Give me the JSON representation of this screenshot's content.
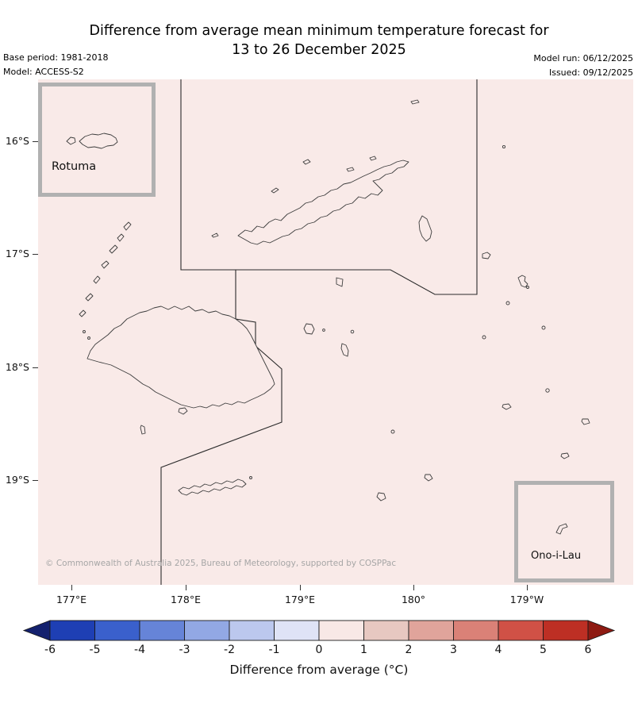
{
  "title": {
    "line1": "Difference from average mean minimum temperature forecast for",
    "line2": "13 to 26 December 2025"
  },
  "meta": {
    "base_period": "Base period: 1981-2018",
    "model": "Model: ACCESS-S2",
    "model_run": "Model run: 06/12/2025",
    "issued": "Issued: 09/12/2025"
  },
  "map": {
    "background": "#f9eae8",
    "copyright": "© Commonwealth of Australia 2025, Bureau of Meteorology, supported by COSPPac",
    "insets": {
      "rotuma_label": "Rotuma",
      "ono_i_lau_label": "Ono-i-Lau"
    },
    "lat_ticks": [
      "16°S",
      "17°S",
      "18°S",
      "19°S"
    ],
    "lon_ticks": [
      "177°E",
      "178°E",
      "179°E",
      "180°",
      "179°W"
    ]
  },
  "colorbar": {
    "label": "Difference from average (°C)",
    "ticks": [
      "-6",
      "-5",
      "-4",
      "-3",
      "-2",
      "-1",
      "0",
      "1",
      "2",
      "3",
      "4",
      "5",
      "6"
    ],
    "segment_colors": [
      "#1e3fb4",
      "#3a60cc",
      "#6684d8",
      "#92a8e4",
      "#bcc8ee",
      "#dfe3f6",
      "#f8e8e6",
      "#e7c8c1",
      "#e0a49b",
      "#da8177",
      "#d05146",
      "#bd2f24"
    ],
    "arrow_left": "#14216e",
    "arrow_right": "#8e1a12"
  }
}
